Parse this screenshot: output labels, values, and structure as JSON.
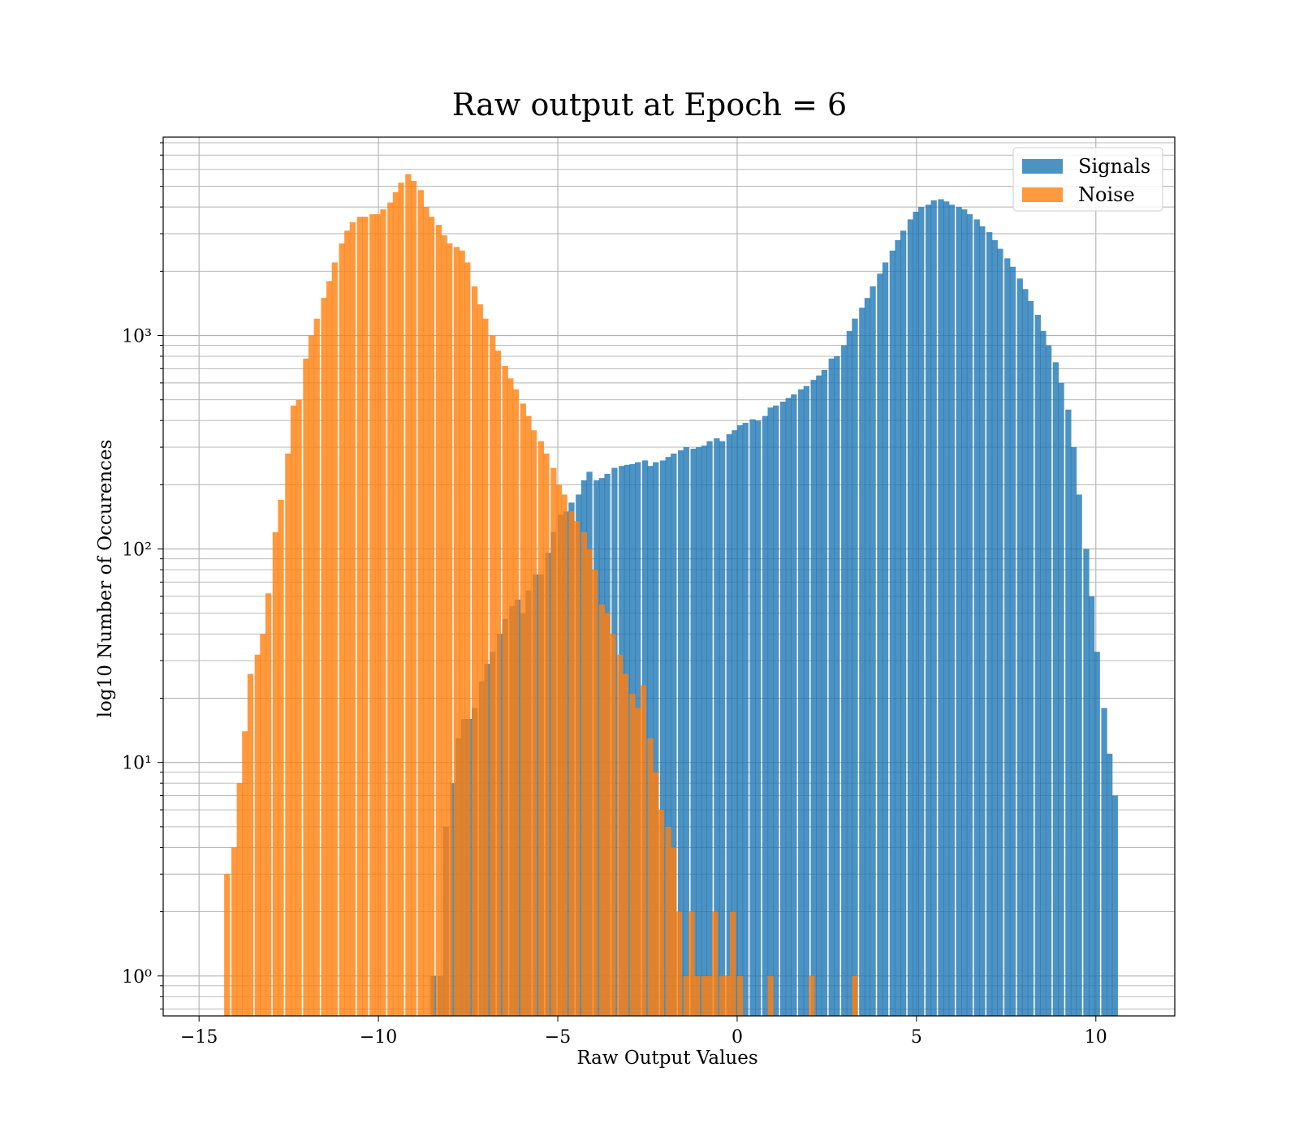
{
  "chart_data": {
    "type": "bar",
    "subtype": "histogram",
    "title": "Raw output at Epoch = 6",
    "xlabel": "Raw Output Values",
    "ylabel": "log10 Number of Occurences",
    "xlim": [
      -16,
      12.2
    ],
    "ylim": [
      0.65,
      8500
    ],
    "yscale": "log",
    "grid": true,
    "legend_position": "top-right",
    "x_ticks": [
      -15,
      -10,
      -5,
      0,
      5,
      10
    ],
    "x_tick_labels": [
      "−15",
      "−10",
      "−5",
      "0",
      "5",
      "10"
    ],
    "y_ticks": [
      1,
      10,
      100,
      1000
    ],
    "y_tick_labels": [
      "10⁰",
      "10¹",
      "10²",
      "10³"
    ],
    "series": [
      {
        "name": "Signals",
        "color": "#1f77b4",
        "opacity": 0.8,
        "bins": [
          [
            -8.55,
            1
          ],
          [
            -8.35,
            1
          ],
          [
            -8.2,
            5
          ],
          [
            -8.0,
            8
          ],
          [
            -7.85,
            13
          ],
          [
            -7.7,
            16
          ],
          [
            -7.55,
            16
          ],
          [
            -7.4,
            18
          ],
          [
            -7.2,
            24
          ],
          [
            -7.05,
            29
          ],
          [
            -6.9,
            33
          ],
          [
            -6.7,
            40
          ],
          [
            -6.55,
            47
          ],
          [
            -6.35,
            54
          ],
          [
            -6.2,
            58
          ],
          [
            -6.05,
            50
          ],
          [
            -5.9,
            64
          ],
          [
            -5.7,
            76
          ],
          [
            -5.55,
            76
          ],
          [
            -5.35,
            96
          ],
          [
            -5.2,
            120
          ],
          [
            -5.0,
            145
          ],
          [
            -4.85,
            150
          ],
          [
            -4.7,
            165
          ],
          [
            -4.5,
            180
          ],
          [
            -4.35,
            210
          ],
          [
            -4.2,
            230
          ],
          [
            -4.0,
            210
          ],
          [
            -3.85,
            215
          ],
          [
            -3.7,
            225
          ],
          [
            -3.5,
            240
          ],
          [
            -3.3,
            245
          ],
          [
            -3.15,
            248
          ],
          [
            -3.0,
            250
          ],
          [
            -2.85,
            255
          ],
          [
            -2.65,
            260
          ],
          [
            -2.5,
            245
          ],
          [
            -2.35,
            255
          ],
          [
            -2.15,
            260
          ],
          [
            -2.0,
            270
          ],
          [
            -1.85,
            280
          ],
          [
            -1.65,
            290
          ],
          [
            -1.5,
            300
          ],
          [
            -1.3,
            295
          ],
          [
            -1.15,
            300
          ],
          [
            -1.0,
            305
          ],
          [
            -0.85,
            320
          ],
          [
            -0.65,
            330
          ],
          [
            -0.5,
            320
          ],
          [
            -0.3,
            345
          ],
          [
            -0.15,
            360
          ],
          [
            0.0,
            380
          ],
          [
            0.15,
            390
          ],
          [
            0.35,
            405
          ],
          [
            0.5,
            400
          ],
          [
            0.7,
            420
          ],
          [
            0.85,
            460
          ],
          [
            1.0,
            470
          ],
          [
            1.2,
            490
          ],
          [
            1.35,
            510
          ],
          [
            1.5,
            530
          ],
          [
            1.7,
            560
          ],
          [
            1.85,
            580
          ],
          [
            2.05,
            620
          ],
          [
            2.2,
            650
          ],
          [
            2.35,
            690
          ],
          [
            2.55,
            780
          ],
          [
            2.7,
            800
          ],
          [
            2.9,
            900
          ],
          [
            3.05,
            1050
          ],
          [
            3.2,
            1200
          ],
          [
            3.4,
            1350
          ],
          [
            3.55,
            1500
          ],
          [
            3.7,
            1700
          ],
          [
            3.9,
            1950
          ],
          [
            4.05,
            2200
          ],
          [
            4.25,
            2500
          ],
          [
            4.4,
            2800
          ],
          [
            4.55,
            3100
          ],
          [
            4.75,
            3500
          ],
          [
            4.9,
            3800
          ],
          [
            5.05,
            4000
          ],
          [
            5.25,
            4100
          ],
          [
            5.4,
            4300
          ],
          [
            5.6,
            4350
          ],
          [
            5.75,
            4250
          ],
          [
            5.9,
            4100
          ],
          [
            6.1,
            4000
          ],
          [
            6.25,
            3900
          ],
          [
            6.4,
            3700
          ],
          [
            6.6,
            3500
          ],
          [
            6.75,
            3250
          ],
          [
            6.95,
            3050
          ],
          [
            7.1,
            2800
          ],
          [
            7.25,
            2550
          ],
          [
            7.45,
            2300
          ],
          [
            7.6,
            2100
          ],
          [
            7.8,
            1850
          ],
          [
            7.95,
            1650
          ],
          [
            8.1,
            1450
          ],
          [
            8.3,
            1250
          ],
          [
            8.45,
            1050
          ],
          [
            8.6,
            900
          ],
          [
            8.8,
            750
          ],
          [
            8.95,
            600
          ],
          [
            9.15,
            450
          ],
          [
            9.3,
            300
          ],
          [
            9.45,
            180
          ],
          [
            9.65,
            100
          ],
          [
            9.8,
            60
          ],
          [
            9.95,
            33
          ],
          [
            10.15,
            18
          ],
          [
            10.3,
            11
          ],
          [
            10.45,
            7
          ]
        ]
      },
      {
        "name": "Noise",
        "color": "#ff7f0e",
        "opacity": 0.8,
        "bins": [
          [
            -14.3,
            3
          ],
          [
            -14.1,
            4
          ],
          [
            -13.95,
            8
          ],
          [
            -13.8,
            14
          ],
          [
            -13.65,
            26
          ],
          [
            -13.45,
            32
          ],
          [
            -13.3,
            40
          ],
          [
            -13.15,
            62
          ],
          [
            -12.95,
            120
          ],
          [
            -12.8,
            170
          ],
          [
            -12.6,
            280
          ],
          [
            -12.45,
            470
          ],
          [
            -12.3,
            500
          ],
          [
            -12.1,
            780
          ],
          [
            -11.95,
            1000
          ],
          [
            -11.8,
            1200
          ],
          [
            -11.6,
            1500
          ],
          [
            -11.45,
            1800
          ],
          [
            -11.3,
            2200
          ],
          [
            -11.1,
            2700
          ],
          [
            -10.95,
            3100
          ],
          [
            -10.8,
            3400
          ],
          [
            -10.6,
            3600
          ],
          [
            -10.45,
            3600
          ],
          [
            -10.25,
            3700
          ],
          [
            -10.1,
            3700
          ],
          [
            -9.95,
            3900
          ],
          [
            -9.75,
            4200
          ],
          [
            -9.6,
            4700
          ],
          [
            -9.45,
            5200
          ],
          [
            -9.25,
            5700
          ],
          [
            -9.1,
            5300
          ],
          [
            -8.9,
            4800
          ],
          [
            -8.75,
            4000
          ],
          [
            -8.6,
            3600
          ],
          [
            -8.4,
            3300
          ],
          [
            -8.25,
            2950
          ],
          [
            -8.1,
            2700
          ],
          [
            -7.9,
            2600
          ],
          [
            -7.75,
            2500
          ],
          [
            -7.6,
            2200
          ],
          [
            -7.4,
            1700
          ],
          [
            -7.25,
            1400
          ],
          [
            -7.1,
            1200
          ],
          [
            -6.9,
            1000
          ],
          [
            -6.75,
            850
          ],
          [
            -6.55,
            720
          ],
          [
            -6.4,
            630
          ],
          [
            -6.25,
            560
          ],
          [
            -6.05,
            480
          ],
          [
            -5.9,
            420
          ],
          [
            -5.75,
            360
          ],
          [
            -5.55,
            320
          ],
          [
            -5.4,
            280
          ],
          [
            -5.2,
            240
          ],
          [
            -5.05,
            200
          ],
          [
            -4.9,
            180
          ],
          [
            -4.7,
            150
          ],
          [
            -4.55,
            135
          ],
          [
            -4.35,
            120
          ],
          [
            -4.2,
            100
          ],
          [
            -4.05,
            80
          ],
          [
            -3.85,
            55
          ],
          [
            -3.7,
            50
          ],
          [
            -3.55,
            40
          ],
          [
            -3.35,
            32
          ],
          [
            -3.2,
            26
          ],
          [
            -3.0,
            21
          ],
          [
            -2.85,
            18
          ],
          [
            -2.7,
            23
          ],
          [
            -2.5,
            13
          ],
          [
            -2.35,
            9
          ],
          [
            -2.2,
            6
          ],
          [
            -2.0,
            5
          ],
          [
            -1.85,
            4
          ],
          [
            -1.7,
            2
          ],
          [
            -1.5,
            1
          ],
          [
            -1.35,
            2
          ],
          [
            -1.2,
            1
          ],
          [
            -1.0,
            1
          ],
          [
            -0.85,
            1
          ],
          [
            -0.7,
            2
          ],
          [
            -0.5,
            1
          ],
          [
            -0.35,
            1
          ],
          [
            -0.2,
            2
          ],
          [
            0.0,
            1
          ],
          [
            0.85,
            1
          ],
          [
            2.0,
            1
          ],
          [
            3.2,
            1
          ]
        ]
      }
    ],
    "bin_width": 0.165
  }
}
